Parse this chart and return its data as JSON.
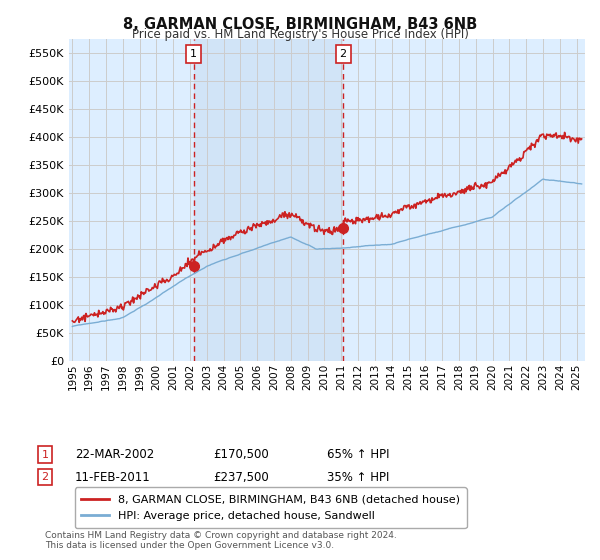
{
  "title": "8, GARMAN CLOSE, BIRMINGHAM, B43 6NB",
  "subtitle": "Price paid vs. HM Land Registry's House Price Index (HPI)",
  "ylabel_ticks": [
    0,
    50000,
    100000,
    150000,
    200000,
    250000,
    300000,
    350000,
    400000,
    450000,
    500000,
    550000
  ],
  "ylim": [
    0,
    575000
  ],
  "xlim_start": 1994.8,
  "xlim_end": 2025.5,
  "legend_line1": "8, GARMAN CLOSE, BIRMINGHAM, B43 6NB (detached house)",
  "legend_line2": "HPI: Average price, detached house, Sandwell",
  "sale1_date": "22-MAR-2002",
  "sale1_price": "£170,500",
  "sale1_hpi": "65% ↑ HPI",
  "sale2_date": "11-FEB-2011",
  "sale2_price": "£237,500",
  "sale2_hpi": "35% ↑ HPI",
  "footnote": "Contains HM Land Registry data © Crown copyright and database right 2024.\nThis data is licensed under the Open Government Licence v3.0.",
  "hpi_color": "#7aadd4",
  "price_color": "#cc2222",
  "vline_color": "#cc2222",
  "background_color": "#ddeeff",
  "shade_color": "#cce0f5",
  "plot_bg_color": "#ffffff",
  "grid_color": "#cccccc",
  "sale1_x": 2002.22,
  "sale1_y": 170500,
  "sale2_x": 2011.11,
  "sale2_y": 237500
}
